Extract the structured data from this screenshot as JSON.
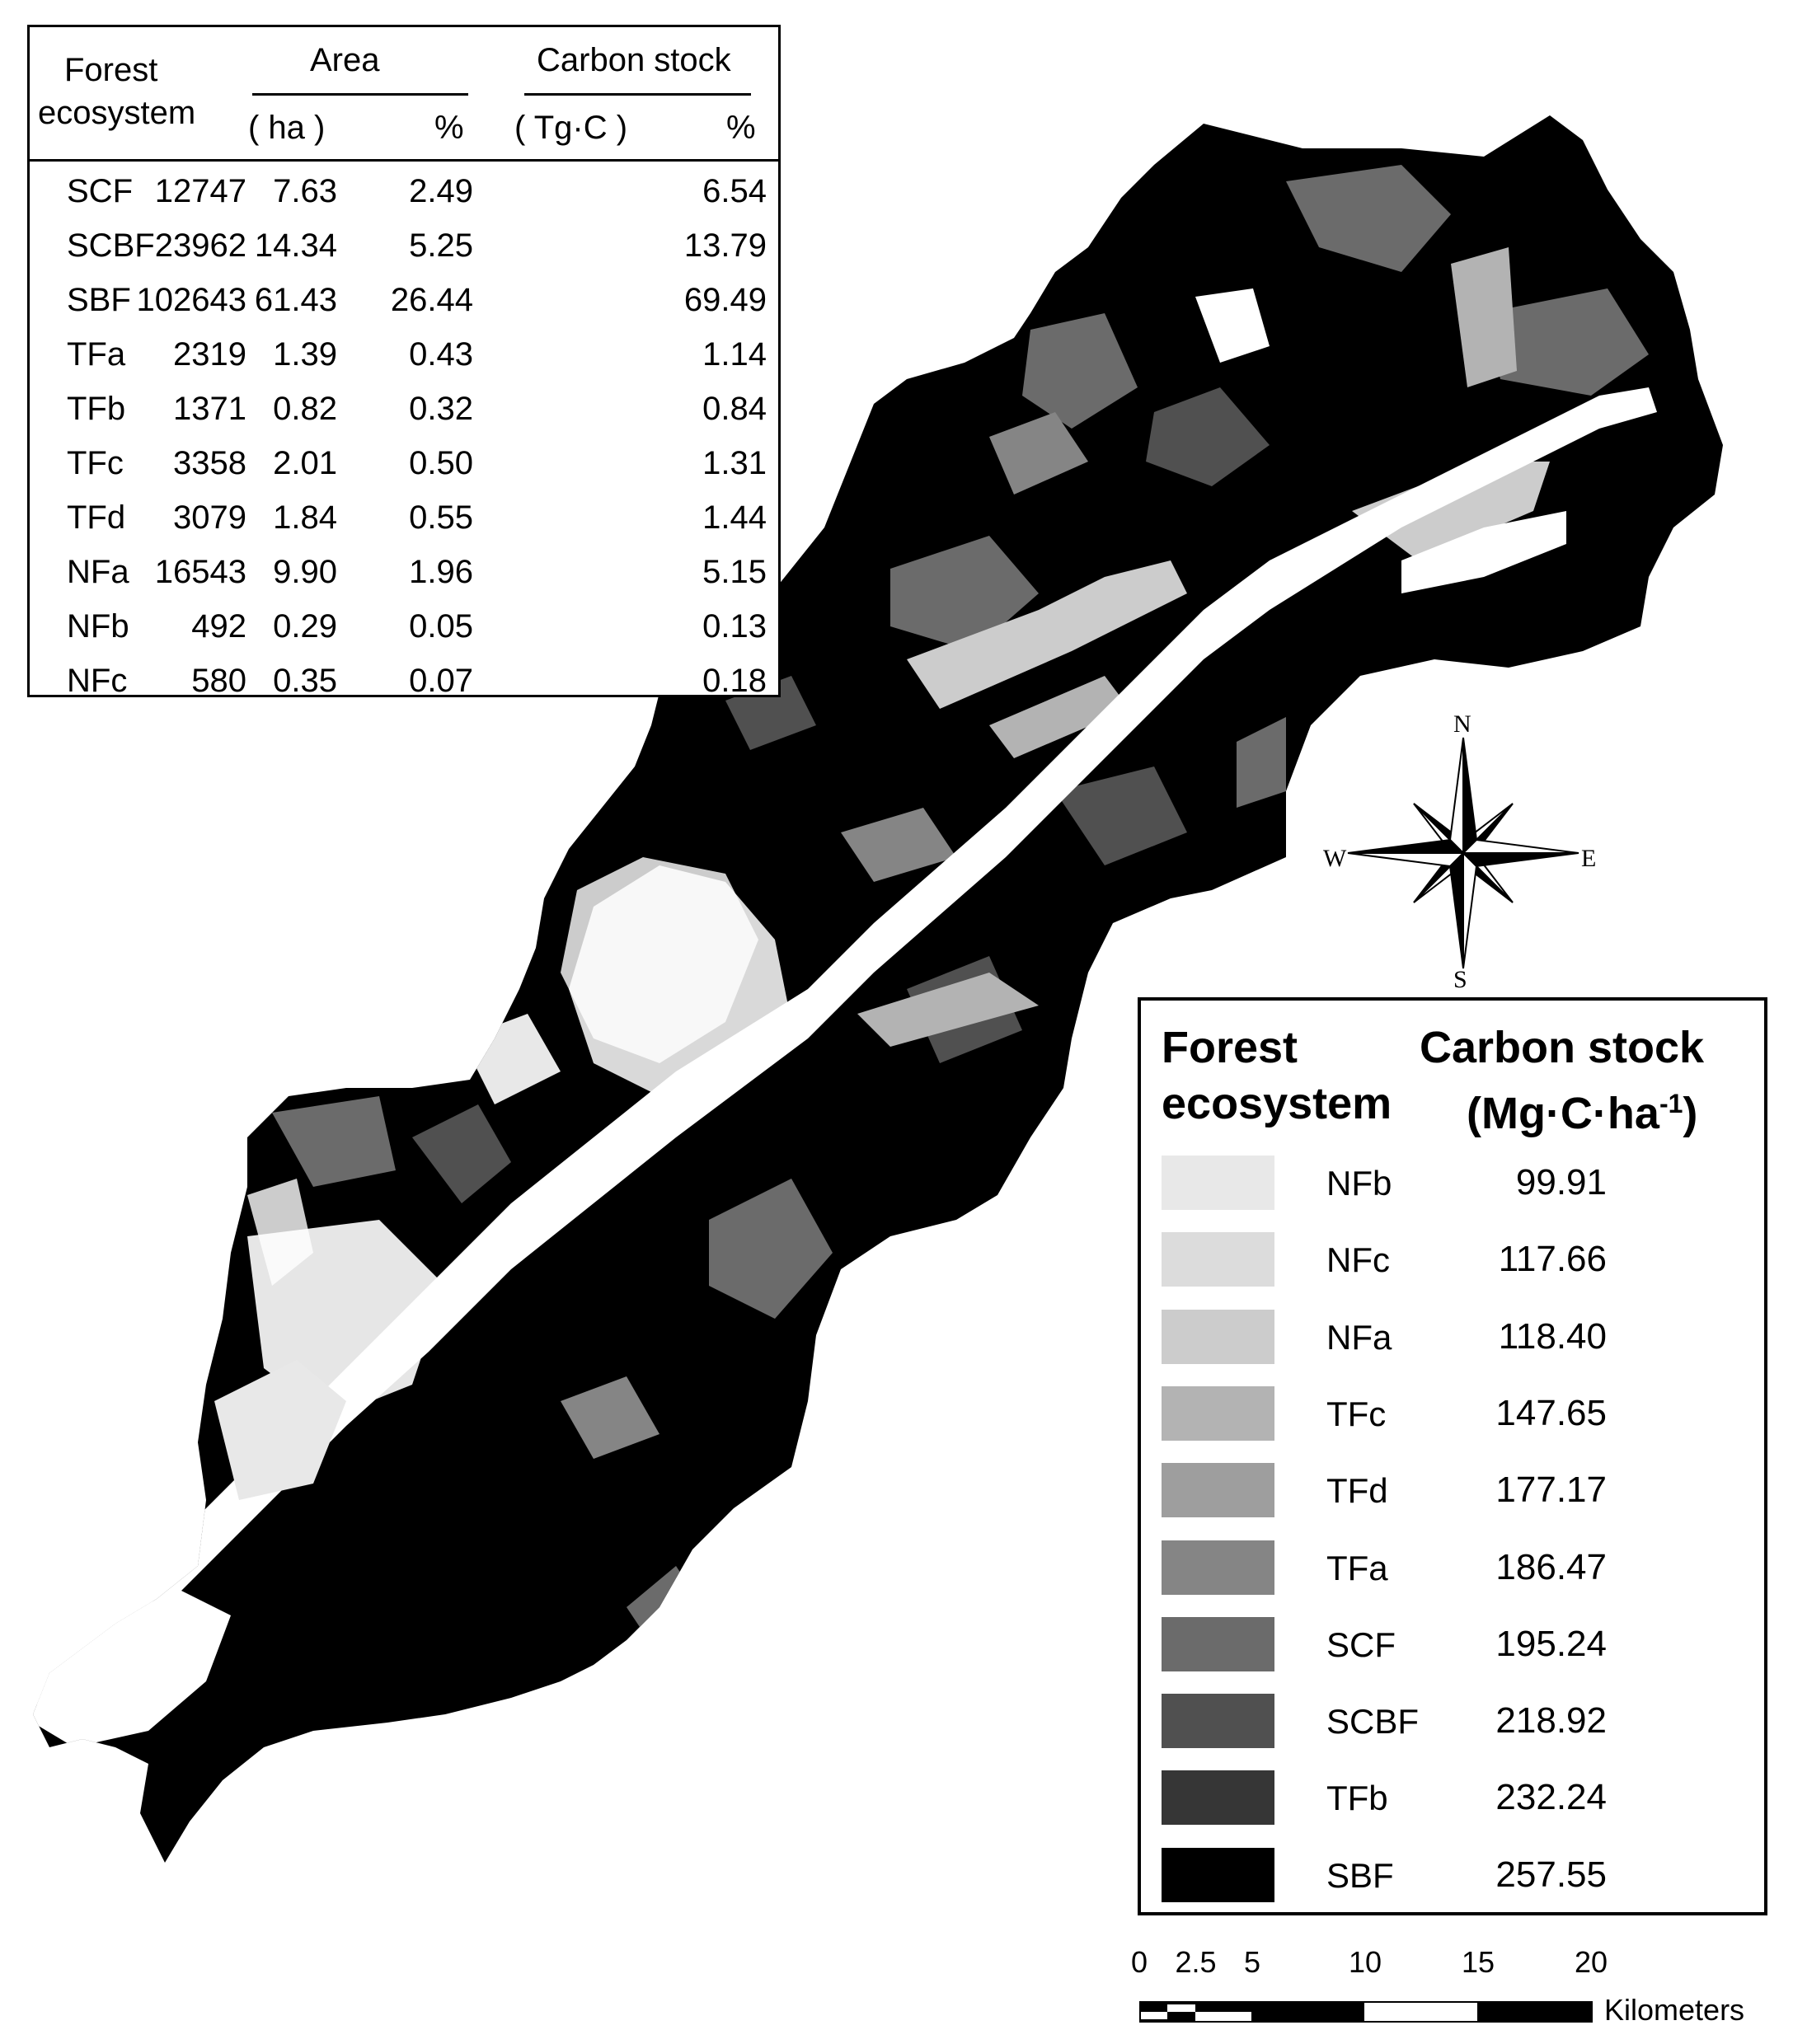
{
  "table": {
    "header_col1_line1": "Forest",
    "header_col1_line2": "ecosystem",
    "header_area": "Area",
    "header_carbon": "Carbon stock",
    "sub_area_unit": "( ha )",
    "sub_area_pct": "%",
    "sub_carbon_unit": "( Tg·C )",
    "sub_carbon_pct": "%",
    "rows": [
      {
        "type": "SCF",
        "area": "12747",
        "area_pct": "7.63",
        "carbon": "2.49",
        "carbon_pct": "6.54"
      },
      {
        "type": "SCBF",
        "area": "23962",
        "area_pct": "14.34",
        "carbon": "5.25",
        "carbon_pct": "13.79"
      },
      {
        "type": "SBF",
        "area": "102643",
        "area_pct": "61.43",
        "carbon": "26.44",
        "carbon_pct": "69.49"
      },
      {
        "type": "TFa",
        "area": "2319",
        "area_pct": "1.39",
        "carbon": "0.43",
        "carbon_pct": "1.14"
      },
      {
        "type": "TFb",
        "area": "1371",
        "area_pct": "0.82",
        "carbon": "0.32",
        "carbon_pct": "0.84"
      },
      {
        "type": "TFc",
        "area": "3358",
        "area_pct": "2.01",
        "carbon": "0.50",
        "carbon_pct": "1.31"
      },
      {
        "type": "TFd",
        "area": "3079",
        "area_pct": "1.84",
        "carbon": "0.55",
        "carbon_pct": "1.44"
      },
      {
        "type": "NFa",
        "area": "16543",
        "area_pct": "9.90",
        "carbon": "1.96",
        "carbon_pct": "5.15"
      },
      {
        "type": "NFb",
        "area": "492",
        "area_pct": "0.29",
        "carbon": "0.05",
        "carbon_pct": "0.13"
      },
      {
        "type": "NFc",
        "area": "580",
        "area_pct": "0.35",
        "carbon": "0.07",
        "carbon_pct": "0.18"
      }
    ]
  },
  "legend": {
    "title_left_line1": "Forest",
    "title_left_line2": "ecosystem",
    "title_right_line1": "Carbon stock",
    "title_right_unit": "(Mg·C·ha",
    "title_right_sup": "-1",
    "title_right_close": ")",
    "items": [
      {
        "type": "NFb",
        "value": "99.91",
        "color": "#e8e8e8"
      },
      {
        "type": "NFc",
        "value": "117.66",
        "color": "#dcdcdc"
      },
      {
        "type": "NFa",
        "value": "118.40",
        "color": "#cccccc"
      },
      {
        "type": "TFc",
        "value": "147.65",
        "color": "#b3b3b3"
      },
      {
        "type": "TFd",
        "value": "177.17",
        "color": "#9e9e9e"
      },
      {
        "type": "TFa",
        "value": "186.47",
        "color": "#858585"
      },
      {
        "type": "SCF",
        "value": "195.24",
        "color": "#6b6b6b"
      },
      {
        "type": "SCBF",
        "value": "218.92",
        "color": "#505050"
      },
      {
        "type": "TFb",
        "value": "232.24",
        "color": "#363636"
      },
      {
        "type": "SBF",
        "value": "257.55",
        "color": "#000000"
      }
    ]
  },
  "compass": {
    "n": "N",
    "s": "S",
    "e": "E",
    "w": "W"
  },
  "scale_bar": {
    "ticks": [
      "0",
      "2.5",
      "5",
      "10",
      "15",
      "20"
    ],
    "unit": "Kilometers"
  }
}
